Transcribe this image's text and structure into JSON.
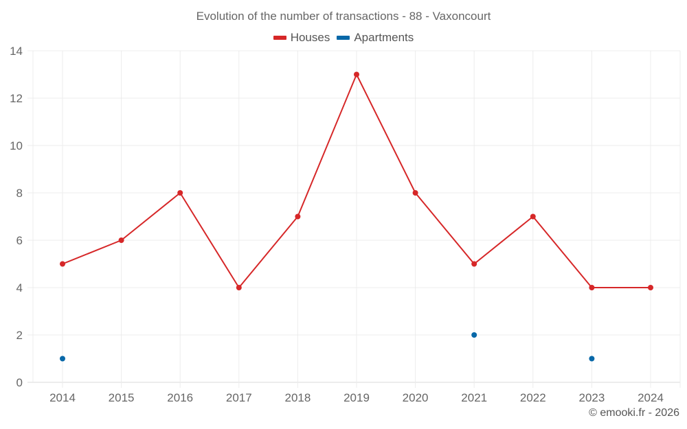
{
  "chart_data": {
    "type": "line",
    "title": "Evolution of the number of transactions - 88 - Vaxoncourt",
    "categories": [
      "2014",
      "2015",
      "2016",
      "2017",
      "2018",
      "2019",
      "2020",
      "2021",
      "2022",
      "2023",
      "2024"
    ],
    "series": [
      {
        "name": "Houses",
        "color": "#d62728",
        "values": [
          5,
          6,
          8,
          4,
          7,
          13,
          8,
          5,
          7,
          4,
          4
        ]
      },
      {
        "name": "Apartments",
        "color": "#0868a8",
        "values": [
          1,
          null,
          null,
          null,
          null,
          null,
          null,
          2,
          null,
          1,
          null
        ]
      }
    ],
    "xlabel": "",
    "ylabel": "",
    "ylim": [
      0,
      14
    ],
    "yticks": [
      0,
      2,
      4,
      6,
      8,
      10,
      12,
      14
    ],
    "grid": true,
    "legend_position": "top"
  },
  "header": {
    "title": "Evolution of the number of transactions - 88 - Vaxoncourt"
  },
  "legend": {
    "items": [
      {
        "label": "Houses",
        "color": "#d62728"
      },
      {
        "label": "Apartments",
        "color": "#0868a8"
      }
    ]
  },
  "footer": {
    "credit": "© emooki.fr - 2026"
  }
}
